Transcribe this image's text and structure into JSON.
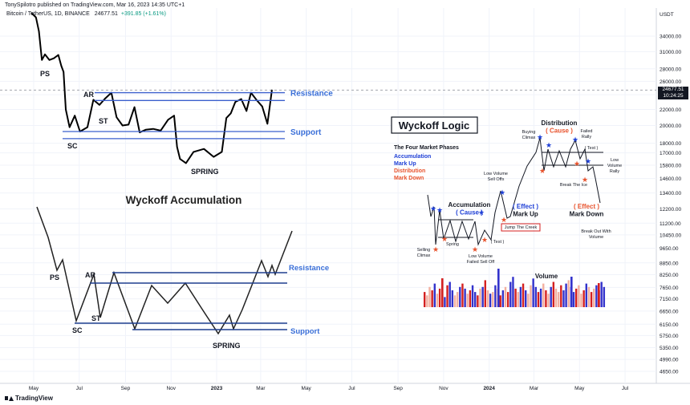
{
  "header": {
    "publisher": "TonySpilotro published on TradingView.com, Mar 16, 2023 14:35 UTC+1",
    "symbol": "Bitcoin / TetherUS, 1D, BINANCE",
    "last": "24677.51",
    "change": "+391.85 (+1.61%)"
  },
  "price_tag": {
    "price": "24677.51",
    "countdown": "10:24:25"
  },
  "brand": {
    "name": "TradingView"
  },
  "colors": {
    "price_line": "#000000",
    "level_line": "#3a5fcd",
    "level_label": "#3a6fd8",
    "accumulation": "#1e3fd6",
    "distribution": "#e8532d",
    "up_vol": "#3333cc",
    "down_vol": "#d42020",
    "light_vol": "#f3b0a0",
    "grid": "#f0f3fa"
  },
  "chart_data": [
    {
      "type": "line",
      "title": "",
      "ylabel": "USDT",
      "y_scale": "log",
      "ylim": [
        4400,
        42000
      ],
      "x_ticks": [
        "May",
        "Jul",
        "Sep",
        "Nov",
        "2023",
        "Mar",
        "May",
        "Jul",
        "Sep",
        "Nov",
        "2024",
        "Mar",
        "May",
        "Jul"
      ],
      "y_ticks": [
        34000.0,
        31000.0,
        28000.0,
        26000.0,
        24000.0,
        22000.0,
        20000.0,
        18000.0,
        17000.0,
        15800.0,
        14600.0,
        13400.0,
        12200.0,
        11200.0,
        10450.0,
        9650.0,
        8850.0,
        8250.0,
        7650.0,
        7150.0,
        6650.0,
        6150.0,
        5750.0,
        5350.0,
        4990.0,
        4650.0
      ],
      "series": [
        {
          "x": [
            "2022-04-28",
            "2022-05-04",
            "2022-05-08",
            "2022-05-12",
            "2022-05-16",
            "2022-05-22",
            "2022-05-28",
            "2022-06-03",
            "2022-06-07",
            "2022-06-10",
            "2022-06-13",
            "2022-06-18",
            "2022-06-25",
            "2022-07-02",
            "2022-07-12",
            "2022-07-20",
            "2022-07-28",
            "2022-08-05",
            "2022-08-13",
            "2022-08-20",
            "2022-08-28",
            "2022-09-05",
            "2022-09-13",
            "2022-09-20",
            "2022-09-28",
            "2022-10-08",
            "2022-10-18",
            "2022-10-28",
            "2022-11-05",
            "2022-11-09",
            "2022-11-13",
            "2022-11-21",
            "2022-12-01",
            "2022-12-15",
            "2022-12-28",
            "2023-01-08",
            "2023-01-14",
            "2023-01-20",
            "2023-01-26",
            "2023-02-03",
            "2023-02-10",
            "2023-02-16",
            "2023-02-24",
            "2023-03-03",
            "2023-03-10",
            "2023-03-13",
            "2023-03-16"
          ],
          "values": [
            39000,
            38000,
            35000,
            29500,
            30500,
            29500,
            29800,
            30400,
            28500,
            27500,
            22000,
            19800,
            21200,
            19300,
            19800,
            23300,
            22600,
            23500,
            24300,
            21000,
            20000,
            20100,
            22300,
            19200,
            19500,
            19600,
            19400,
            20700,
            21200,
            17600,
            16400,
            16000,
            17100,
            17400,
            16600,
            17100,
            20900,
            21500,
            23000,
            23400,
            21800,
            24300,
            23200,
            22400,
            20200,
            22300,
            24677
          ]
        }
      ],
      "levels": [
        {
          "label": "Resistance",
          "value": 24300
        },
        {
          "value": 23200
        },
        {
          "label": "Support",
          "value": 19300
        },
        {
          "value": 18500
        }
      ],
      "annotations": [
        "PS",
        "AR",
        "ST",
        "SC",
        "SPRING"
      ]
    },
    {
      "type": "line",
      "title": "Wyckoff Accumulation",
      "levels": [
        "Resistance",
        "Support"
      ],
      "annotations": [
        "PS",
        "AR",
        "ST",
        "SC",
        "SPRING"
      ]
    },
    {
      "type": "line",
      "title": "Wyckoff Logic",
      "phases_title": "The Four Market Phases",
      "phases": [
        "Accumulation",
        "Mark Up",
        "Distribution",
        "Mark Down"
      ],
      "annotations": [
        {
          "lines": [
            "Accumulation",
            "( Cause )"
          ]
        },
        {
          "lines": [
            "( Effect )",
            "Mark Up"
          ]
        },
        {
          "lines": [
            "Distribution",
            "( Cause )"
          ]
        },
        {
          "lines": [
            "( Effect )",
            "Mark Down"
          ]
        },
        {
          "lines": [
            "Selling",
            "Climax"
          ]
        },
        {
          "lines": [
            "Spring"
          ]
        },
        {
          "lines": [
            "Low Volume",
            "Failed Sell Off"
          ]
        },
        {
          "lines": [
            "( Test )"
          ]
        },
        {
          "lines": [
            "Low Volume",
            "Sell Offs"
          ]
        },
        {
          "lines": [
            "Jump The Creek"
          ]
        },
        {
          "lines": [
            "Buying",
            "Climax"
          ]
        },
        {
          "lines": [
            "Failed",
            "Rally"
          ]
        },
        {
          "lines": [
            "( Test )"
          ]
        },
        {
          "lines": [
            "Low",
            "Volume",
            "Rally"
          ]
        },
        {
          "lines": [
            "Break The Ice"
          ]
        },
        {
          "lines": [
            "Break Out With",
            "Volume"
          ]
        },
        {
          "lines": [
            "Volume"
          ]
        }
      ]
    }
  ]
}
